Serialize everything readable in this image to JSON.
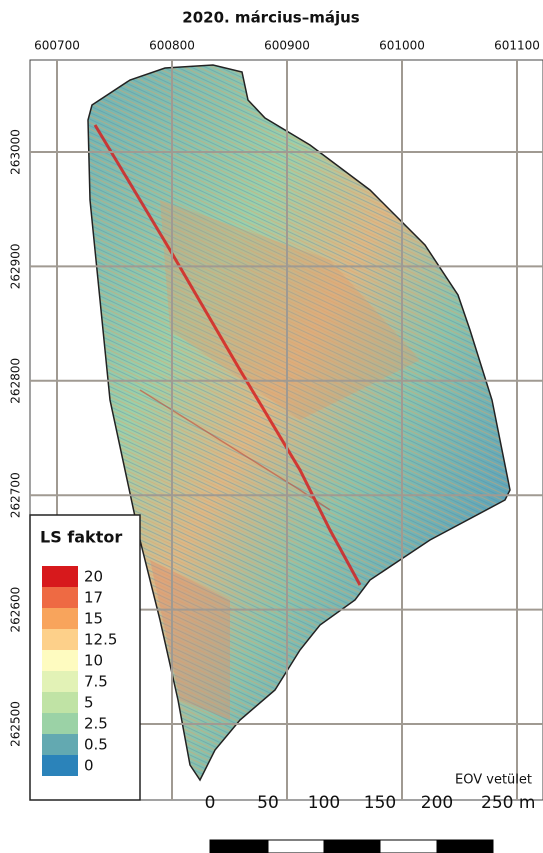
{
  "title": "2020. március–május",
  "x_labels": [
    "600700",
    "600800",
    "600900",
    "601000",
    "601100"
  ],
  "y_labels": [
    "263000",
    "262900",
    "262800",
    "262700",
    "262600",
    "262500"
  ],
  "legend": {
    "title": "LS faktor",
    "items": [
      {
        "label": "20",
        "color": "#d7191c"
      },
      {
        "label": "17",
        "color": "#ee6a43"
      },
      {
        "label": "15",
        "color": "#f8a45c"
      },
      {
        "label": "12.5",
        "color": "#fdd08a"
      },
      {
        "label": "10",
        "color": "#fefbc0"
      },
      {
        "label": "7.5",
        "color": "#e2f2b6"
      },
      {
        "label": "5",
        "color": "#c0e3a5"
      },
      {
        "label": "2.5",
        "color": "#9bd2a6"
      },
      {
        "label": "0.5",
        "color": "#63a9b1"
      },
      {
        "label": "0",
        "color": "#2b83ba"
      }
    ]
  },
  "projection_note": "EOV vetület",
  "scale_bar": {
    "labels": [
      "0",
      "50",
      "100",
      "150",
      "200",
      "250 m"
    ]
  }
}
